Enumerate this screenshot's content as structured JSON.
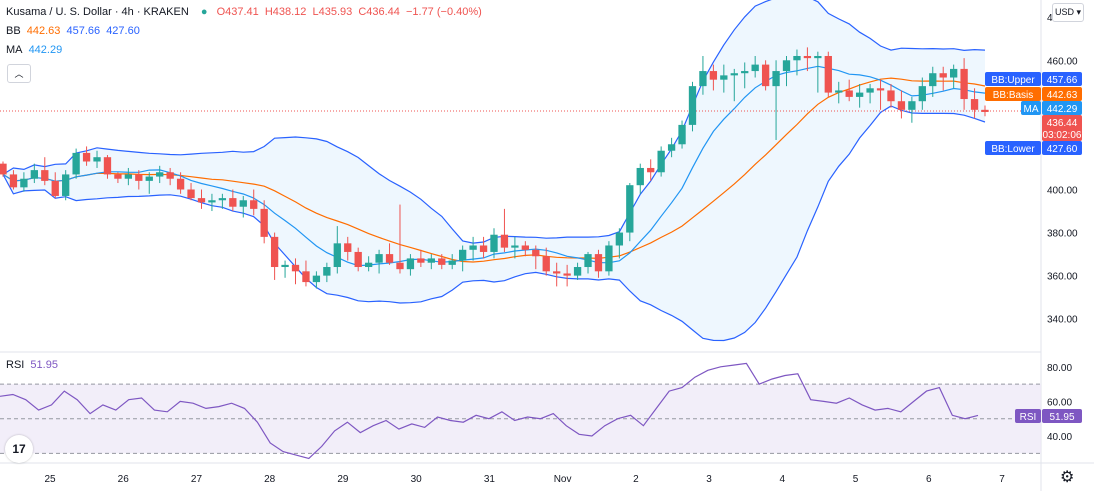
{
  "header": {
    "symbol": "Kusama / U. S. Dollar · 4h · KRAKEN",
    "open": "O437.41",
    "high": "H438.12",
    "low": "L435.93",
    "close": "C436.44",
    "change": "−1.77 (−0.40%)",
    "bb_label": "BB",
    "bb_basis": "442.63",
    "bb_upper": "457.66",
    "bb_lower": "427.60",
    "ma_label": "MA",
    "ma_value": "442.29",
    "rsi_label": "RSI",
    "rsi_value": "51.95"
  },
  "controls": {
    "currency": "USD",
    "currency_caret": "▾",
    "collapse_icon": "chevron-up-icon",
    "settings_icon": "gear-icon",
    "logo_icon": "tradingview-logo"
  },
  "price_labels": {
    "bb_upper": {
      "text": "BB:Upper",
      "value": "457.66",
      "color": "#2962ff"
    },
    "bb_basis": {
      "text": "BB:Basis",
      "value": "442.63",
      "color": "#ff6d00"
    },
    "ma": {
      "text": "MA",
      "value": "442.29",
      "color": "#2196f3"
    },
    "last": {
      "value": "436.44",
      "countdown": "03:02:06",
      "color": "#ef5350"
    },
    "bb_lower": {
      "text": "BB:Lower",
      "value": "427.60",
      "color": "#2962ff"
    },
    "rsi": {
      "text": "RSI",
      "value": "51.95",
      "color": "#7e57c2"
    }
  },
  "colors": {
    "up": "#26a69a",
    "down": "#ef5350",
    "bb_band": "#2962ff",
    "bb_basis": "#ff6d00",
    "ma": "#2196f3",
    "rsi": "#7e57c2",
    "rsi_fill": "#ede7f6",
    "bb_fill": "#e3f2fd"
  },
  "chart_data": [
    {
      "type": "candlestick",
      "title": "Kusama / U. S. Dollar · 4h · KRAKEN",
      "y_ticks": [
        340,
        360,
        380,
        400,
        420,
        440,
        460,
        480
      ],
      "y_tick_labels": [
        "340.00",
        "360.00",
        "380.00",
        "400.00",
        "420.00",
        "440.00",
        "460.00",
        "480.00"
      ],
      "ylim": [
        325,
        488
      ],
      "x_tick_labels": [
        "25",
        "26",
        "27",
        "28",
        "29",
        "30",
        "31",
        "Nov",
        "2",
        "3",
        "4",
        "5",
        "6",
        "7"
      ],
      "last_price": 436.44,
      "grid": false,
      "ohlc": [
        [
          412,
          413,
          406,
          407
        ],
        [
          407,
          409,
          400,
          401
        ],
        [
          401,
          408,
          399,
          405
        ],
        [
          405,
          412,
          403,
          409
        ],
        [
          409,
          415,
          402,
          404
        ],
        [
          404,
          408,
          396,
          397
        ],
        [
          397,
          409,
          395,
          407
        ],
        [
          407,
          419,
          405,
          417
        ],
        [
          417,
          420,
          411,
          413
        ],
        [
          413,
          418,
          410,
          415
        ],
        [
          415,
          416,
          405,
          407
        ],
        [
          407,
          408,
          403,
          405
        ],
        [
          405,
          410,
          402,
          407
        ],
        [
          407,
          409,
          400,
          404
        ],
        [
          404,
          408,
          398,
          406
        ],
        [
          406,
          411,
          403,
          408
        ],
        [
          408,
          410,
          402,
          405
        ],
        [
          405,
          408,
          398,
          400
        ],
        [
          400,
          403,
          395,
          396
        ],
        [
          396,
          400,
          391,
          394
        ],
        [
          394,
          398,
          390,
          395
        ],
        [
          395,
          398,
          391,
          396
        ],
        [
          396,
          400,
          390,
          392
        ],
        [
          392,
          397,
          387,
          395
        ],
        [
          395,
          400,
          388,
          391
        ],
        [
          391,
          395,
          375,
          378
        ],
        [
          378,
          380,
          358,
          364
        ],
        [
          364,
          367,
          359,
          365
        ],
        [
          365,
          368,
          356,
          362
        ],
        [
          362,
          367,
          355,
          357
        ],
        [
          357,
          362,
          354,
          360
        ],
        [
          360,
          366,
          357,
          364
        ],
        [
          364,
          383,
          361,
          375
        ],
        [
          375,
          378,
          367,
          371
        ],
        [
          371,
          373,
          362,
          364
        ],
        [
          364,
          369,
          362,
          366
        ],
        [
          366,
          372,
          361,
          370
        ],
        [
          370,
          375,
          365,
          366
        ],
        [
          366,
          393,
          361,
          363
        ],
        [
          363,
          370,
          360,
          368
        ],
        [
          368,
          372,
          364,
          366
        ],
        [
          366,
          370,
          363,
          368
        ],
        [
          368,
          370,
          363,
          365
        ],
        [
          365,
          370,
          363,
          367
        ],
        [
          367,
          374,
          362,
          372
        ],
        [
          372,
          378,
          367,
          374
        ],
        [
          374,
          378,
          368,
          371
        ],
        [
          371,
          382,
          368,
          379
        ],
        [
          379,
          391,
          371,
          373
        ],
        [
          373,
          378,
          368,
          374
        ],
        [
          374,
          376,
          369,
          372
        ],
        [
          372,
          374,
          363,
          369
        ],
        [
          369,
          373,
          360,
          362
        ],
        [
          362,
          366,
          355,
          361
        ],
        [
          361,
          365,
          355,
          360
        ],
        [
          360,
          366,
          358,
          364
        ],
        [
          364,
          371,
          361,
          370
        ],
        [
          370,
          372,
          359,
          362
        ],
        [
          362,
          376,
          360,
          374
        ],
        [
          374,
          382,
          368,
          380
        ],
        [
          380,
          403,
          376,
          402
        ],
        [
          402,
          412,
          398,
          410
        ],
        [
          410,
          414,
          404,
          408
        ],
        [
          408,
          420,
          406,
          418
        ],
        [
          418,
          424,
          415,
          421
        ],
        [
          421,
          432,
          419,
          430
        ],
        [
          430,
          450,
          427,
          448
        ],
        [
          448,
          462,
          444,
          455
        ],
        [
          455,
          458,
          446,
          451
        ],
        [
          451,
          458,
          445,
          453
        ],
        [
          453,
          456,
          441,
          454
        ],
        [
          454,
          459,
          447,
          455
        ],
        [
          455,
          462,
          452,
          458
        ],
        [
          458,
          460,
          446,
          448
        ],
        [
          448,
          460,
          423,
          455
        ],
        [
          455,
          462,
          448,
          460
        ],
        [
          460,
          465,
          453,
          462
        ],
        [
          462,
          466,
          455,
          461
        ],
        [
          461,
          464,
          445,
          462
        ],
        [
          462,
          464,
          443,
          445
        ],
        [
          445,
          450,
          440,
          446
        ],
        [
          446,
          451,
          441,
          443
        ],
        [
          443,
          449,
          438,
          445
        ],
        [
          445,
          449,
          440,
          447
        ],
        [
          447,
          451,
          437,
          446
        ],
        [
          446,
          449,
          438,
          441
        ],
        [
          441,
          446,
          433,
          437
        ],
        [
          437,
          443,
          431,
          441
        ],
        [
          441,
          452,
          437,
          448
        ],
        [
          448,
          457,
          443,
          454
        ],
        [
          454,
          457,
          446,
          452
        ],
        [
          452,
          458,
          447,
          456
        ],
        [
          456,
          461,
          437,
          442
        ],
        [
          442,
          447,
          433,
          437
        ],
        [
          437,
          439,
          434,
          436
        ]
      ]
    },
    {
      "type": "line",
      "title": "RSI",
      "ylim": [
        25,
        88
      ],
      "y_ticks": [
        40,
        60,
        80
      ],
      "y_tick_labels": [
        "40.00",
        "60.00",
        "80.00"
      ],
      "band": [
        30,
        70
      ],
      "midline": 50,
      "series": [
        {
          "name": "RSI",
          "values": [
            63,
            64,
            61,
            55,
            58,
            66,
            61,
            53,
            58,
            55,
            61,
            62,
            55,
            54,
            60,
            59,
            56,
            57,
            59,
            56,
            48,
            36,
            31,
            29,
            27,
            34,
            43,
            48,
            42,
            46,
            49,
            44,
            47,
            45,
            51,
            49,
            48,
            52,
            50,
            54,
            49,
            51,
            50,
            53,
            46,
            41,
            40,
            46,
            50,
            52,
            46,
            56,
            66,
            68,
            74,
            78,
            80,
            81,
            82,
            70,
            73,
            75,
            76,
            61,
            60,
            59,
            62,
            58,
            55,
            56,
            54,
            60,
            66,
            68,
            52,
            50,
            51.95
          ]
        }
      ]
    }
  ]
}
